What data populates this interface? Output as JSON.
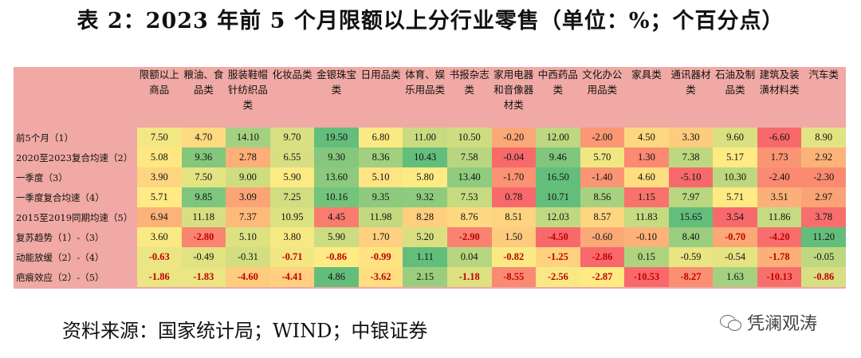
{
  "title": "表 2：2023 年前 5 个月限额以上分行业零售（单位：%；个百分点）",
  "columns": [
    [
      "限额以上",
      "商品"
    ],
    [
      "粮油、食",
      "品类"
    ],
    [
      "服装鞋帽",
      "针纺织品",
      "类"
    ],
    [
      "化妆品类"
    ],
    [
      "金银珠宝",
      "类"
    ],
    [
      "日用品类"
    ],
    [
      "体育、娱",
      "乐用品类"
    ],
    [
      "书报杂志",
      "类"
    ],
    [
      "家用电器",
      "和音像器",
      "材类"
    ],
    [
      "中西药品",
      "类"
    ],
    [
      "文化办公",
      "用品类"
    ],
    [
      "家具类"
    ],
    [
      "通讯器材",
      "类"
    ],
    [
      "石油及制",
      "品类"
    ],
    [
      "建筑及装",
      "潢材料类"
    ],
    [
      "汽车类"
    ]
  ],
  "rows": [
    {
      "label": "前5个月（1）",
      "values": [
        "7.50",
        "4.70",
        "14.10",
        "9.70",
        "19.50",
        "6.80",
        "11.00",
        "10.50",
        "-0.20",
        "12.00",
        "-2.00",
        "4.50",
        "3.30",
        "9.60",
        "-6.60",
        "8.90"
      ]
    },
    {
      "label": "2020至2023复合均速（2）",
      "values": [
        "5.08",
        "9.36",
        "2.78",
        "6.55",
        "9.30",
        "8.36",
        "10.43",
        "7.58",
        "-0.04",
        "9.46",
        "5.70",
        "1.30",
        "7.38",
        "5.17",
        "1.73",
        "2.92"
      ]
    },
    {
      "label": "一季度（3）",
      "values": [
        "3.90",
        "7.50",
        "9.00",
        "5.90",
        "13.60",
        "5.10",
        "5.80",
        "13.40",
        "-1.70",
        "16.50",
        "-1.40",
        "4.60",
        "-5.10",
        "10.30",
        "-2.40",
        "-2.30"
      ]
    },
    {
      "label": "一季度复合均速（4）",
      "values": [
        "5.71",
        "9.85",
        "3.09",
        "7.25",
        "10.16",
        "9.35",
        "9.32",
        "7.53",
        "0.78",
        "10.71",
        "8.56",
        "1.15",
        "7.97",
        "5.71",
        "3.51",
        "2.97"
      ]
    },
    {
      "label": "2015至2019同期均速（5）",
      "values": [
        "6.94",
        "11.18",
        "7.37",
        "10.95",
        "4.45",
        "11.98",
        "8.28",
        "8.76",
        "8.51",
        "12.03",
        "8.57",
        "11.83",
        "15.65",
        "3.54",
        "11.86",
        "3.78"
      ]
    },
    {
      "label": "复苏趋势（1）-（3）",
      "values": [
        "3.60",
        "-2.80",
        "5.10",
        "3.80",
        "5.90",
        "1.70",
        "5.20",
        "-2.90",
        "1.50",
        "-4.50",
        "-0.60",
        "-0.10",
        "8.40",
        "-0.70",
        "-4.20",
        "11.20"
      ]
    },
    {
      "label": "动能放缓（2）-（4）",
      "values": [
        "-0.63",
        "-0.49",
        "-0.31",
        "-0.71",
        "-0.86",
        "-0.99",
        "1.11",
        "0.04",
        "-0.82",
        "-1.25",
        "-2.86",
        "0.15",
        "-0.59",
        "-0.54",
        "-1.78",
        "-0.05"
      ]
    },
    {
      "label": "疤痕效应（2）-（5）",
      "values": [
        "-1.86",
        "-1.83",
        "-4.60",
        "-4.41",
        "4.86",
        "-3.62",
        "2.15",
        "-1.18",
        "-8.55",
        "-2.56",
        "-2.87",
        "-10.53",
        "-8.27",
        "1.63",
        "-10.13",
        "-0.86"
      ]
    }
  ],
  "colors": {
    "header_bg": "#f0a9a4",
    "red": "#f8696b",
    "yellow": "#ffeb84",
    "green": "#63be7b",
    "negative_text": "#c00000"
  },
  "source": "资料来源：国家统计局；WIND；中银证券",
  "watermark": {
    "icon": "wechat-icon",
    "text": "凭澜观涛"
  }
}
